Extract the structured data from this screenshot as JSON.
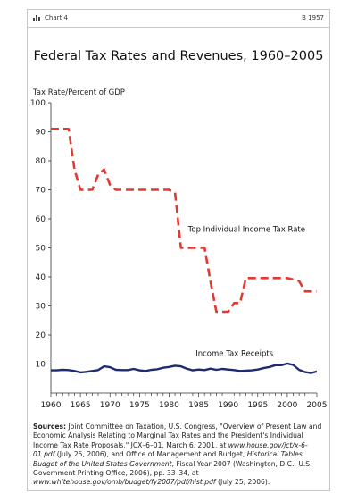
{
  "header": {
    "chart_label": "Chart 4",
    "doc_code": "B 1957"
  },
  "chart_data": {
    "type": "line",
    "title": "Federal Tax Rates and Revenues, 1960–2005",
    "ylabel": "Tax Rate/Percent of GDP",
    "xlabel": "",
    "ylim": [
      0,
      100
    ],
    "xlim": [
      1960,
      2005
    ],
    "yticks": [
      10,
      20,
      30,
      40,
      50,
      60,
      70,
      80,
      90,
      100
    ],
    "xticks": [
      1960,
      1965,
      1970,
      1975,
      1980,
      1985,
      1990,
      1995,
      2000,
      2005
    ],
    "grid": false,
    "series": [
      {
        "name": "Top Individual Income Tax Rate",
        "style": "dashed",
        "color": "#e03a31",
        "x": [
          1960,
          1963,
          1964,
          1965,
          1966,
          1967,
          1968,
          1969,
          1970,
          1971,
          1980,
          1981,
          1982,
          1983,
          1986,
          1987,
          1988,
          1990,
          1991,
          1992,
          1993,
          2000,
          2001,
          2002,
          2003,
          2005
        ],
        "y": [
          91,
          91,
          77,
          70,
          70,
          70,
          75.25,
          77,
          71.75,
          70,
          70,
          69.13,
          50,
          50,
          50,
          38.5,
          28,
          28,
          31,
          31,
          39.6,
          39.6,
          39.1,
          38.6,
          35,
          35
        ]
      },
      {
        "name": "Income Tax Receipts",
        "style": "solid",
        "color": "#1f2b6e",
        "x": [
          1960,
          1961,
          1962,
          1963,
          1964,
          1965,
          1966,
          1967,
          1968,
          1969,
          1970,
          1971,
          1972,
          1973,
          1974,
          1975,
          1976,
          1977,
          1978,
          1979,
          1980,
          1981,
          1982,
          1983,
          1984,
          1985,
          1986,
          1987,
          1988,
          1989,
          1990,
          1991,
          1992,
          1993,
          1994,
          1995,
          1996,
          1997,
          1998,
          1999,
          2000,
          2001,
          2002,
          2003,
          2004,
          2005
        ],
        "y": [
          7.8,
          7.8,
          8.0,
          7.9,
          7.6,
          7.1,
          7.3,
          7.6,
          7.9,
          9.2,
          8.9,
          8.0,
          7.9,
          7.9,
          8.3,
          7.8,
          7.6,
          8.0,
          8.2,
          8.7,
          9.0,
          9.4,
          9.2,
          8.4,
          7.8,
          8.1,
          7.9,
          8.4,
          8.0,
          8.3,
          8.1,
          7.9,
          7.6,
          7.7,
          7.8,
          8.1,
          8.6,
          9.0,
          9.6,
          9.6,
          10.2,
          9.7,
          8.0,
          7.2,
          6.9,
          7.4
        ]
      }
    ],
    "annotations": [
      {
        "text": "Top Individual Income Tax Rate",
        "series": 0
      },
      {
        "text": "Income Tax Receipts",
        "series": 1
      }
    ]
  },
  "sources": {
    "label": "Sources:",
    "p1": " Joint Committee on Taxation, U.S. Congress, \"Overview of Present Law and Economic Analysis Relating to Marginal Tax Rates and the President's Individual Income Tax Rate Proposals,\" JCX–6–01, March 6, 2001, at ",
    "url1": "www.house.gov/jct/x-6-01.pdf",
    "p2": " (July 25, 2006), and Office of Management and Budget, ",
    "book": "Historical Tables, Budget of the United States Government",
    "p3": ", Fiscal Year 2007 (Washington, D.C.: U.S. Government Printing Office, 2006), pp. 33–34, at ",
    "url2": "www.whitehouse.gov/omb/budget/fy2007/pdf/hist.pdf",
    "p4": " (July 25, 2006)."
  }
}
